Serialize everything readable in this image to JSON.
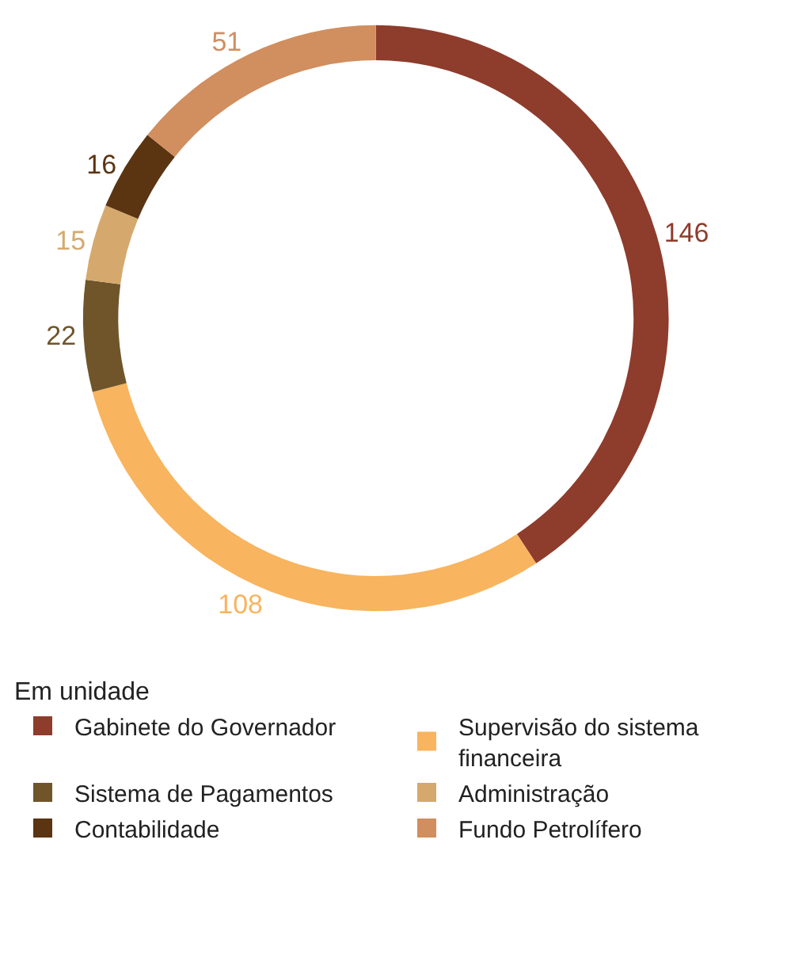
{
  "chart_data": {
    "type": "donut",
    "legend_title": "Em unidade",
    "legend": "bottom",
    "data_labels": true,
    "categories": [
      "Gabinete do Governador",
      "Supervisão do sistema financeira",
      "Sistema de Pagamentos",
      "Administração",
      "Contabilidade",
      "Fundo Petrolífero"
    ],
    "values": [
      146,
      108,
      22,
      15,
      16,
      51
    ],
    "colors": [
      "#8e3c2c",
      "#f8b45e",
      "#6f5529",
      "#d5a96d",
      "#5b3411",
      "#d18e5e"
    ]
  }
}
